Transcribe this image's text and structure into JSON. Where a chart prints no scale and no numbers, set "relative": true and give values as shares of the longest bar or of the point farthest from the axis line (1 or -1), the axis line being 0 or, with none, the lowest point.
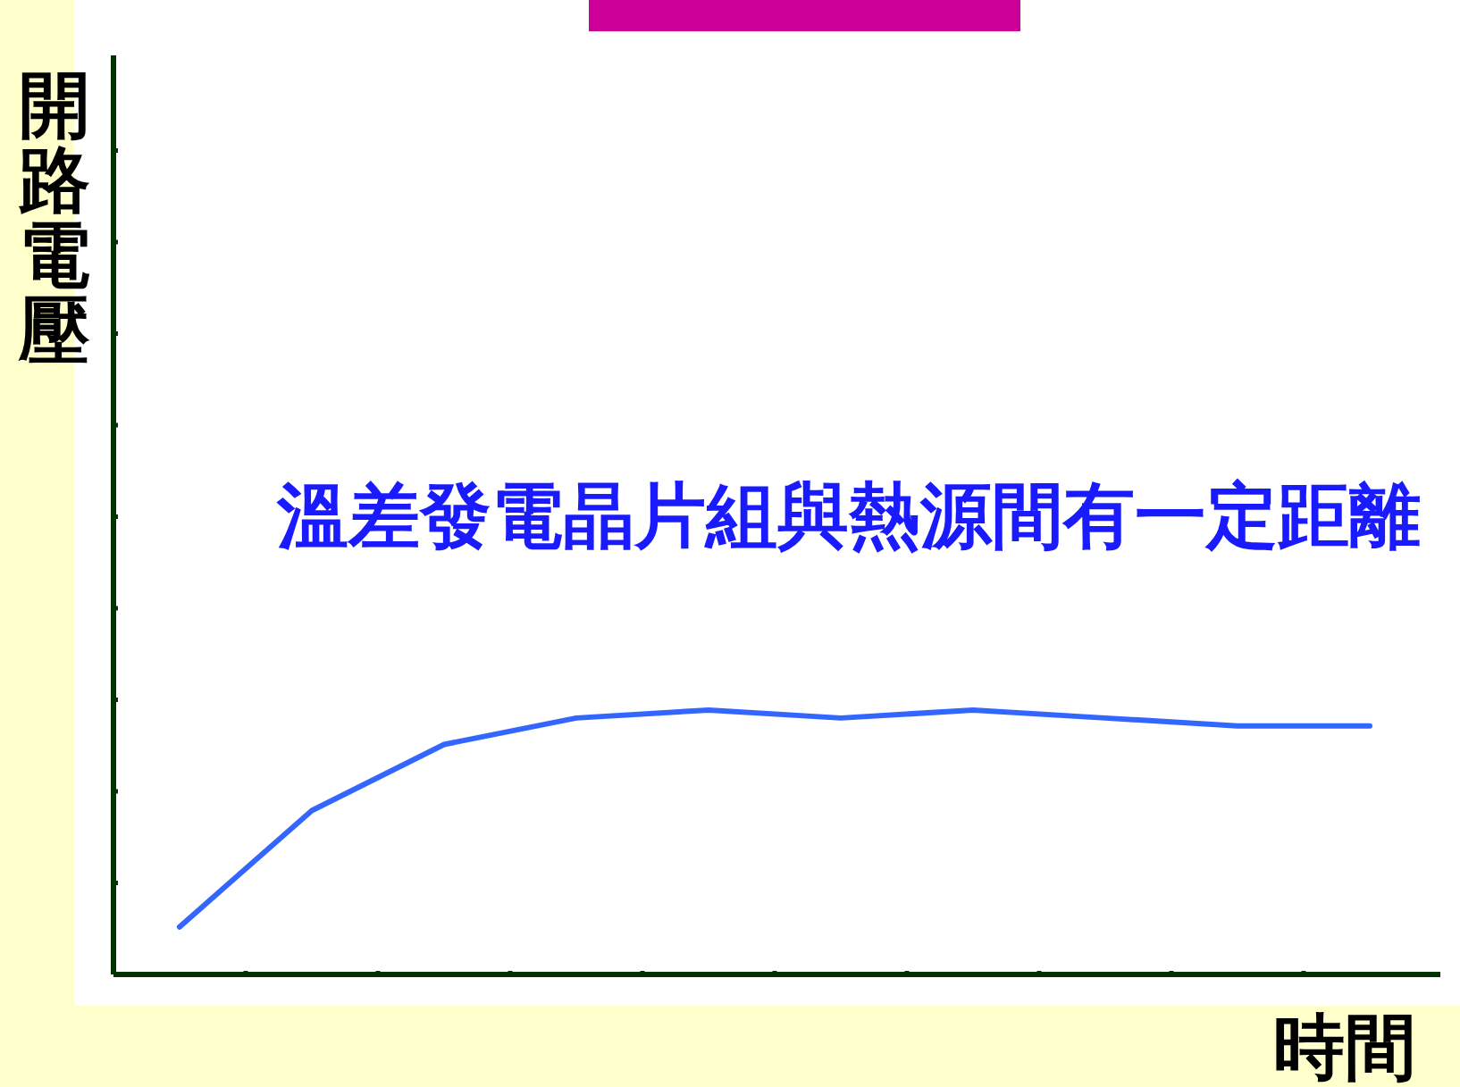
{
  "chart_data": {
    "type": "line",
    "ylabel": "開路電壓",
    "xlabel": "時間",
    "annotations": [
      "溫差發電晶片組與熱源間有一定距離"
    ],
    "relative": true,
    "categories": [
      null,
      null,
      null,
      null,
      null,
      null,
      null,
      null,
      null,
      null
    ],
    "series": [
      {
        "color": "#3366ff",
        "values": [
          0.18,
          0.62,
          0.87,
          0.97,
          1,
          0.97,
          1,
          0.97,
          0.94,
          0.94
        ]
      }
    ],
    "grid": false,
    "marker": "none",
    "line_style": "solid"
  }
}
